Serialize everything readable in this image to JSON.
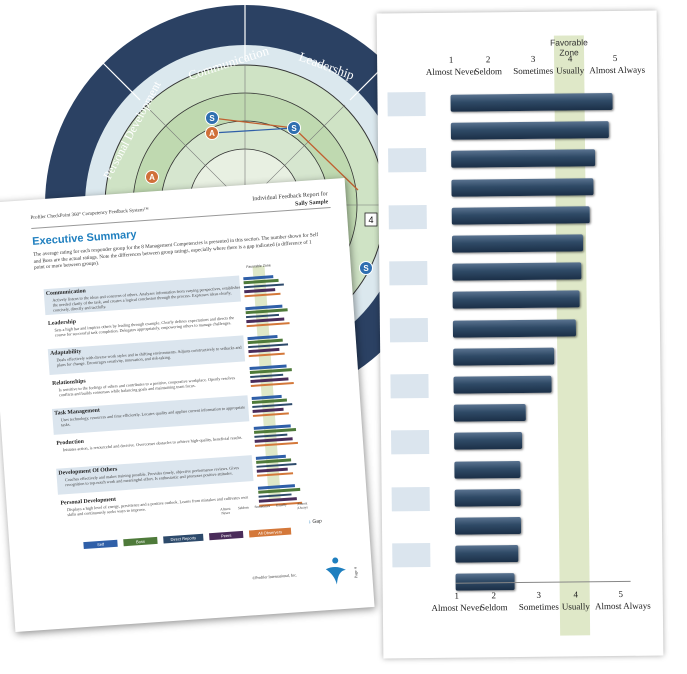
{
  "wheel": {
    "segments": [
      "Communication",
      "Leadership",
      "Personal Development"
    ],
    "badge_number": "4",
    "markers": [
      "S",
      "A",
      "S",
      "A",
      "S"
    ]
  },
  "bar_page": {
    "zone_label": "Favorable Zone",
    "scale_numbers": [
      "1",
      "2",
      "3",
      "4",
      "5"
    ],
    "scale_labels": [
      "Almost Never",
      "Seldom",
      "Sometimes",
      "Usually",
      "Almost Always"
    ]
  },
  "chart_data": {
    "type": "bar",
    "orientation": "horizontal",
    "title": "",
    "xlim": [
      1,
      5
    ],
    "x_ticks": [
      1,
      2,
      3,
      4,
      5
    ],
    "x_tick_labels": [
      "Almost Never",
      "Seldom",
      "Sometimes",
      "Usually",
      "Almost Always"
    ],
    "favorable_zone": [
      3.5,
      4.2
    ],
    "values": [
      4.7,
      4.6,
      4.3,
      4.25,
      4.15,
      4.0,
      3.95,
      3.9,
      3.8,
      3.3,
      3.25,
      2.65,
      2.55,
      2.5,
      2.5,
      2.5,
      2.45,
      2.35
    ],
    "colors": {
      "bar": "#2f4a66",
      "zone": "#dfe8c8",
      "band": "#dbe5ee"
    }
  },
  "doc": {
    "header_left": "Profiler CheckPoint 360° Competency Feedback System™",
    "header_right_1": "Individual Feedback Report for",
    "header_right_2": "Sally Sample",
    "title": "Executive Summary",
    "intro": "The average rating for each responder group for the 8 Management Competencies is presented in this section. The number shown for Self and Boss are the actual ratings. Note the differences between group ratings, especially where there is a gap indicated (a difference of 1 point or more between groups).",
    "favorable_zone_label": "Favorable Zone",
    "competencies": [
      {
        "name": "Communication",
        "desc": "Actively listens to the ideas and concerns of others. Analyzes information from varying perspectives, establishes the needed clarity of the task, and creates a logical conclusion through the process. Expresses ideas clearly, concisely, directly and tactfully."
      },
      {
        "name": "Leadership",
        "desc": "Sets a high bar and inspires others by leading through example. Clearly defines expectations and directs the course for successful task completion. Delegates appropriately, empowering others to manage challenges."
      },
      {
        "name": "Adaptability",
        "desc": "Deals effectively with diverse work styles and in shifting environments. Adjusts constructively to setbacks and plans for change. Encourages creativity, innovation, and risk-taking."
      },
      {
        "name": "Relationships",
        "desc": "Is sensitive to the feelings of others and contributes to a positive, cooperative workplace. Openly resolves conflicts and builds consensus while balancing goals and maintaining team focus."
      },
      {
        "name": "Task Management",
        "desc": "Uses technology, resources and time efficiently. Locates quality and applies current information to appropriate tasks."
      },
      {
        "name": "Production",
        "desc": "Initiates action, is resourceful and decisive. Overcomes obstacles to achieve high-quality, beneficial results."
      },
      {
        "name": "Development Of Others",
        "desc": "Coaches effectively and makes training possible. Provides timely, objective performance reviews. Gives recognition to top-notch work and meaningful effort. Is enthusiastic and promotes positive attitudes."
      },
      {
        "name": "Personal Development",
        "desc": "Displays a high level of energy, persistence and a positive outlook. Learns from mistakes and cultivates own skills and continuously seeks ways to improve."
      }
    ],
    "legend": [
      "Self",
      "Boss",
      "Direct Reports",
      "Peers",
      "All Observers"
    ],
    "legend_colors": [
      "#2f5fa8",
      "#4e7a3a",
      "#2d4a6b",
      "#4a2c5a",
      "#d4783a"
    ],
    "gap_label": "Gap",
    "footer": "©Profiler International, Inc.",
    "page_label": "Page 4",
    "mini_scale": [
      "Almost Never",
      "Seldom",
      "Sometimes",
      "Usually",
      "Almost Always"
    ]
  }
}
